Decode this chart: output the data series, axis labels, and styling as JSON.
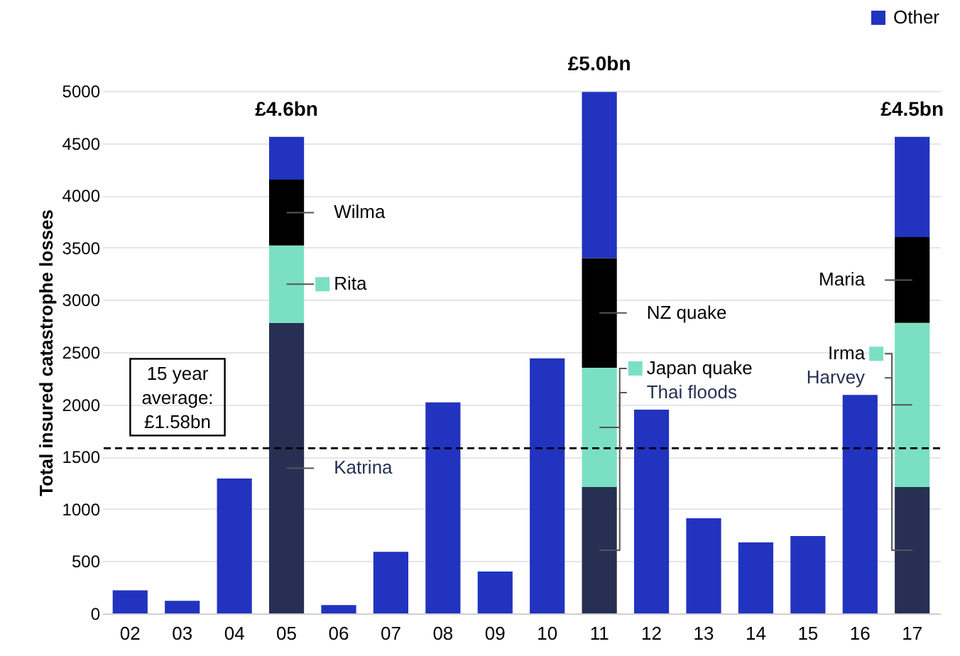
{
  "chart_data": {
    "type": "bar",
    "stacked": true,
    "ylabel": "Total insured catastrophe losses",
    "categories": [
      "02",
      "03",
      "04",
      "05",
      "06",
      "07",
      "08",
      "09",
      "10",
      "11",
      "12",
      "13",
      "14",
      "15",
      "16",
      "17"
    ],
    "series": [
      {
        "name": "Katrina",
        "color": "#273053",
        "values": [
          null,
          null,
          null,
          2780,
          null,
          null,
          null,
          null,
          null,
          null,
          null,
          null,
          null,
          null,
          null,
          null
        ]
      },
      {
        "name": "Thai floods",
        "color": "#273053",
        "values": [
          null,
          null,
          null,
          null,
          null,
          null,
          null,
          null,
          null,
          1210,
          null,
          null,
          null,
          null,
          null,
          null
        ]
      },
      {
        "name": "Harvey",
        "color": "#273053",
        "values": [
          null,
          null,
          null,
          null,
          null,
          null,
          null,
          null,
          null,
          null,
          null,
          null,
          null,
          null,
          null,
          1210
        ]
      },
      {
        "name": "Rita",
        "color": "#7be0c3",
        "values": [
          null,
          null,
          null,
          740,
          null,
          null,
          null,
          null,
          null,
          null,
          null,
          null,
          null,
          null,
          null,
          null
        ]
      },
      {
        "name": "Japan quake",
        "color": "#7be0c3",
        "values": [
          null,
          null,
          null,
          null,
          null,
          null,
          null,
          null,
          null,
          1140,
          null,
          null,
          null,
          null,
          null,
          null
        ]
      },
      {
        "name": "Irma",
        "color": "#7be0c3",
        "values": [
          null,
          null,
          null,
          null,
          null,
          null,
          null,
          null,
          null,
          null,
          null,
          null,
          null,
          null,
          null,
          1570
        ]
      },
      {
        "name": "Wilma",
        "color": "#000000",
        "values": [
          null,
          null,
          null,
          630,
          null,
          null,
          null,
          null,
          null,
          null,
          null,
          null,
          null,
          null,
          null,
          null
        ]
      },
      {
        "name": "NZ quake",
        "color": "#000000",
        "values": [
          null,
          null,
          null,
          null,
          null,
          null,
          null,
          null,
          null,
          1050,
          null,
          null,
          null,
          null,
          null,
          null
        ]
      },
      {
        "name": "Maria",
        "color": "#000000",
        "values": [
          null,
          null,
          null,
          null,
          null,
          null,
          null,
          null,
          null,
          null,
          null,
          null,
          null,
          null,
          null,
          820
        ]
      },
      {
        "name": "Other",
        "color": "#2233c0",
        "values": [
          220,
          120,
          1290,
          410,
          80,
          590,
          2020,
          400,
          2440,
          1590,
          1950,
          910,
          680,
          740,
          2090,
          960
        ]
      }
    ],
    "ylim": [
      0,
      5000
    ],
    "yticks": [
      0,
      500,
      1000,
      1500,
      2000,
      2500,
      3000,
      3500,
      4000,
      4500,
      5000
    ],
    "grid": "y",
    "legend": "top right",
    "totals": [
      null,
      null,
      null,
      "£4.6bn",
      null,
      null,
      null,
      null,
      null,
      "£5.0bn",
      null,
      null,
      null,
      null,
      null,
      "£4.5bn"
    ],
    "ref_lines": [
      {
        "axis": "y",
        "value": 1580,
        "label": "15 year\naverage:\n£1.58bn",
        "color": "#000000",
        "line_style": "dashed"
      }
    ]
  }
}
